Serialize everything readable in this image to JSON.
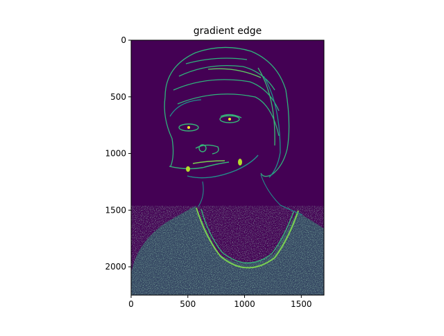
{
  "chart_data": {
    "type": "heatmap",
    "title": "gradient edge",
    "xlabel": "",
    "ylabel": "",
    "colormap": "viridis",
    "xlim": [
      0,
      1700
    ],
    "ylim": [
      2250,
      0
    ],
    "xticks": [
      0,
      500,
      1000,
      1500
    ],
    "yticks": [
      0,
      500,
      1000,
      1500,
      2000
    ],
    "xtick_labels": [
      "0",
      "500",
      "1000",
      "1500"
    ],
    "ytick_labels": [
      "0",
      "500",
      "1000",
      "1500",
      "2000"
    ],
    "background_color": "#440154",
    "edge_colors": [
      "#21918c",
      "#35b779",
      "#5ec962",
      "#b5de2b",
      "#fde725"
    ],
    "image_content": "edge-detected grayscale photograph: a child's portrait with hair, face and textured shirt outlined",
    "grid": false
  }
}
